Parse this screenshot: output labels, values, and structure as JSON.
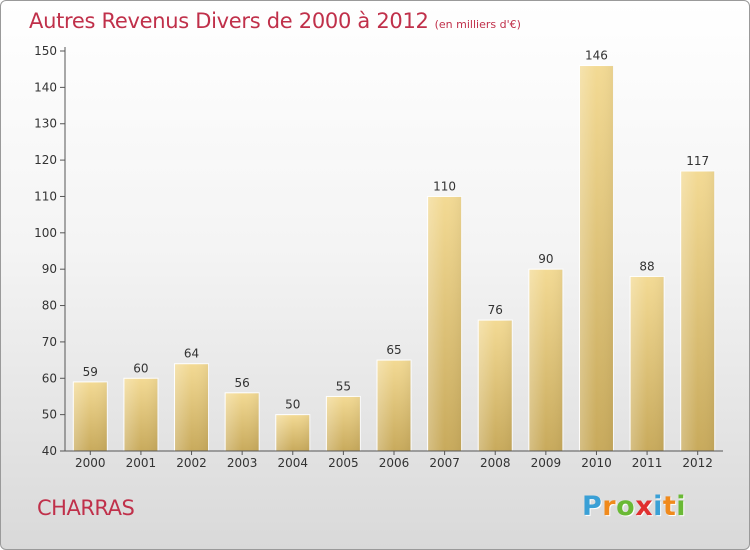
{
  "chart_data": {
    "type": "bar",
    "title": "Autres Revenus Divers de 2000 à 2012",
    "subtitle": "(en milliers d'€)",
    "categories": [
      "2000",
      "2001",
      "2002",
      "2003",
      "2004",
      "2005",
      "2006",
      "2007",
      "2008",
      "2009",
      "2010",
      "2011",
      "2012"
    ],
    "values": [
      59,
      60,
      64,
      56,
      50,
      55,
      65,
      110,
      76,
      90,
      146,
      88,
      117
    ],
    "ylim": [
      40,
      150
    ],
    "yticks": [
      40,
      50,
      60,
      70,
      80,
      90,
      100,
      110,
      120,
      130,
      140,
      150
    ],
    "xlabel": "",
    "ylabel": "",
    "grid": false,
    "bar_color": "#e8cd84"
  },
  "location": "CHARRAS",
  "brand": {
    "letters": [
      "P",
      "r",
      "o",
      "x",
      "i",
      "t",
      "i"
    ],
    "colors": [
      "#3aa0d6",
      "#f08a1c",
      "#6ab935",
      "#e03030",
      "#3aa0d6",
      "#f08a1c",
      "#6ab935"
    ]
  },
  "colors": {
    "title": "#c0304a",
    "axis": "#333333"
  }
}
